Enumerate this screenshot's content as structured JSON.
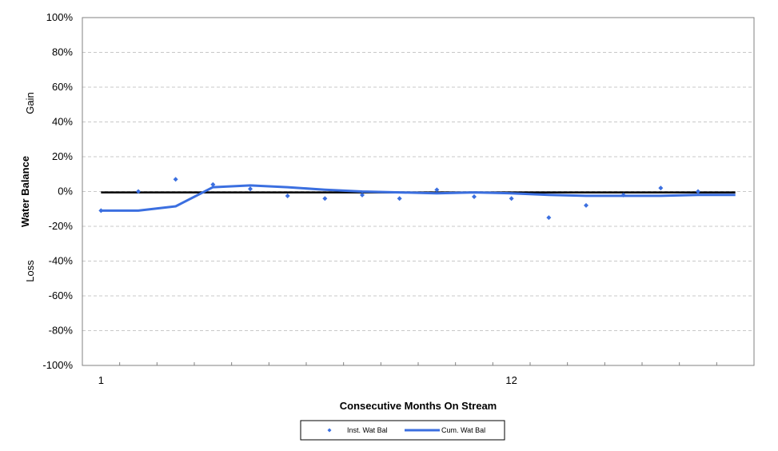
{
  "chart_data": {
    "type": "line",
    "xlabel": "Consecutive Months On Stream",
    "ylabel": "Water Balance",
    "y_region_labels": {
      "upper": "Gain",
      "lower": "Loss"
    },
    "xlim": [
      0.5,
      18.5
    ],
    "ylim": [
      -100,
      100
    ],
    "y_ticks": [
      -100,
      -80,
      -60,
      -40,
      -20,
      0,
      20,
      40,
      60,
      80,
      100
    ],
    "y_tick_labels": [
      "-100%",
      "-80%",
      "-60%",
      "-40%",
      "-20%",
      "0%",
      "20%",
      "40%",
      "60%",
      "80%",
      "100%"
    ],
    "x_tick_labels": [
      {
        "x": 1,
        "label": "1"
      },
      {
        "x": 12,
        "label": "12"
      }
    ],
    "grid": "horizontal dashed",
    "reference_line_y": -0.5,
    "series": [
      {
        "name": "Inst. Wat Bal",
        "style": "markers",
        "color": "#3b6fe0",
        "x": [
          1,
          2,
          3,
          4,
          5,
          6,
          7,
          8,
          9,
          10,
          11,
          12,
          13,
          14,
          15,
          16,
          17,
          18
        ],
        "y": [
          -11,
          0,
          7,
          4,
          1.5,
          -2.5,
          -4,
          -2,
          -4,
          1,
          -3,
          -4,
          -15,
          -8,
          -2,
          2,
          0,
          null
        ]
      },
      {
        "name": "Cum. Wat Bal",
        "style": "line",
        "color": "#3b6fe0",
        "x": [
          1,
          2,
          3,
          4,
          5,
          6,
          7,
          8,
          9,
          10,
          11,
          12,
          13,
          14,
          15,
          16,
          17,
          18
        ],
        "y": [
          -11,
          -11,
          -8.5,
          2.5,
          3.5,
          2.5,
          1,
          0,
          -0.5,
          -1,
          -0.5,
          -1,
          -2,
          -2.5,
          -2.5,
          -2.5,
          -2,
          -2
        ]
      }
    ],
    "legend": {
      "position": "bottom-center"
    }
  }
}
